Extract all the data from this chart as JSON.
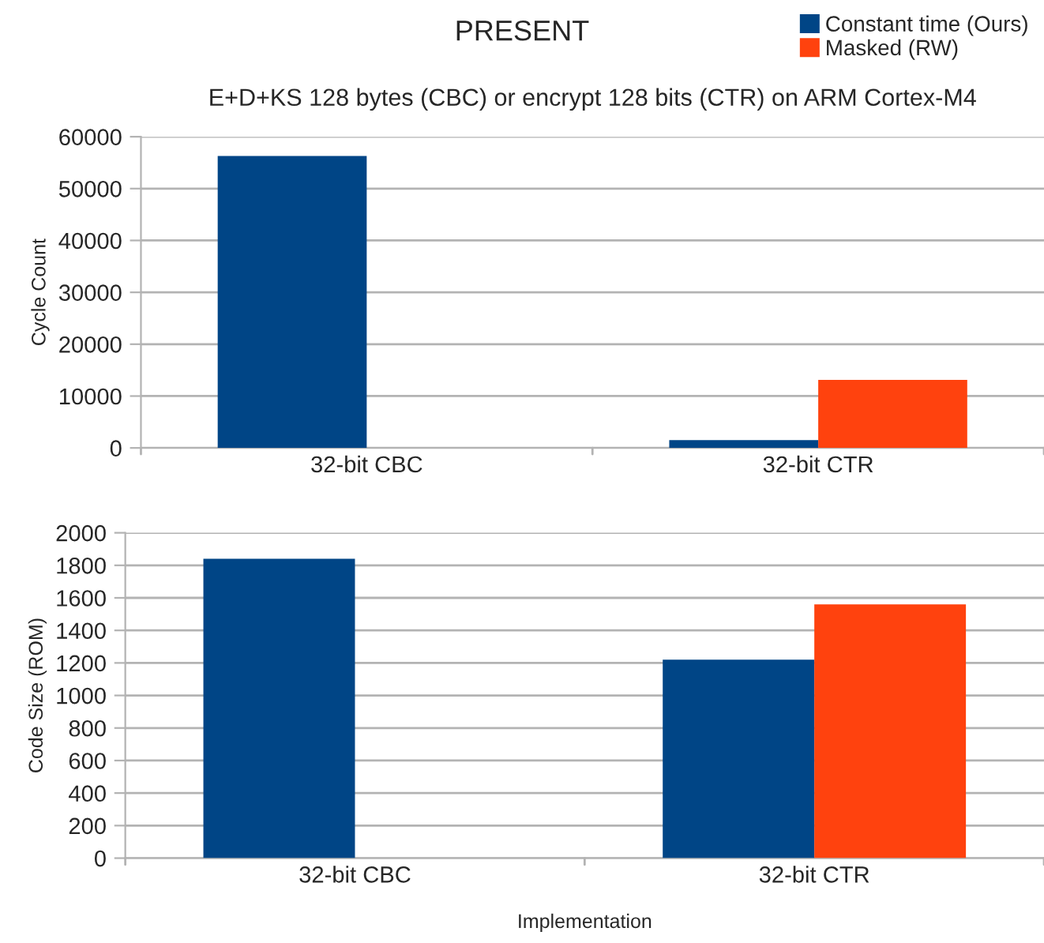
{
  "chart_data": [
    {
      "type": "bar",
      "title": "PRESENT",
      "subtitle": "E+D+KS 128 bytes (CBC) or encrypt 128 bits (CTR) on ARM Cortex-M4",
      "ylabel": "Cycle Count",
      "categories": [
        "32-bit CBC",
        "32-bit CTR"
      ],
      "series": [
        {
          "name": "Constant time (Ours)",
          "color": "#004586",
          "values": [
            56300,
            1500
          ]
        },
        {
          "name": "Masked (RW)",
          "color": "#ff420e",
          "values": [
            null,
            13100
          ]
        }
      ],
      "ylim": [
        0,
        60000
      ],
      "yticks": [
        0,
        10000,
        20000,
        30000,
        40000,
        50000,
        60000
      ],
      "grid": "y",
      "legend": "top right"
    },
    {
      "type": "bar",
      "xlabel": "Implementation",
      "ylabel": "Code Size (ROM)",
      "categories": [
        "32-bit CBC",
        "32-bit CTR"
      ],
      "series": [
        {
          "color": "#004586",
          "values": [
            1840,
            1220
          ]
        },
        {
          "color": "#ff420e",
          "values": [
            null,
            1560
          ]
        }
      ],
      "ylim": [
        0,
        2000
      ],
      "yticks": [
        0,
        200,
        400,
        600,
        800,
        1000,
        1200,
        1400,
        1600,
        1800,
        2000
      ],
      "grid": "y"
    }
  ]
}
